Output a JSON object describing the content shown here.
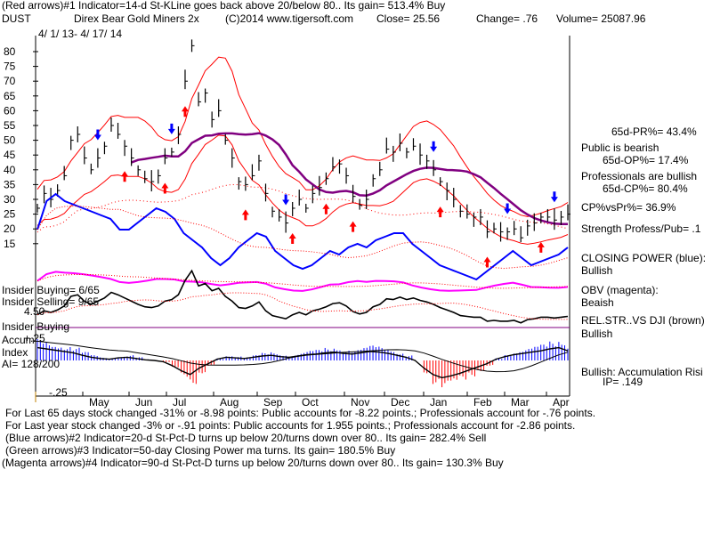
{
  "header": {
    "line1": "(Red arrows)#1 Indicator=14-d St-KLine goes back above 20/below 80..  Its gain= 513.4% Buy",
    "symbol": "DUST",
    "company": "Direx Bear Gold Miners 2x",
    "copyright": "(C)2014 www.tigersoft.com",
    "close": "Close=   25.56",
    "change": "Change= .76",
    "volume": "Volume= 25087.96",
    "dates": "4/ 1/ 13-  4/ 17/ 14"
  },
  "right_panel": {
    "pr": "65d-PR%= 43.4%",
    "public": "Public is bearish",
    "op": "65d-OP%= 17.4%",
    "pros": "Professionals are bullish",
    "cp": "65d-CP%= 80.4%",
    "cpvspr": "CP%vsPr%=  36.9%",
    "strength": "Strength Profess/Pub= .1",
    "cp_title": "CLOSING POWER (blue):",
    "cp_status": "Bullish",
    "obv_title": "OBV (magenta):",
    "obv_status": "Beaish",
    "rel_title": "REL.STR..VS DJI (brown)",
    "rel_status": "Bullish",
    "accum_title": "Bullish: Accumulation Risi",
    "accum_ip": "IP=  .149"
  },
  "left_panel": {
    "insider_buying": "Insider Buying= 6/65",
    "insider_selling": "Insider Selling= 9/65",
    "minus_value": "4.50",
    "insider_buying2": "Insider Buying",
    "accum": "Accum",
    "index": "Index",
    "plus25": "+.25",
    "ai": "AI= 128/200",
    "minus25": "-.25"
  },
  "footer": {
    "line1": "For Last 65 days stock changed -31% or -8.98 points:  Public accounts for -8.22 points.;  Professionals account for -.76 points.",
    "line2": "For Last year stock changed -3% or -.91 points:  Public accounts for  1.955 points.;  Professionals account for -2.86 points.",
    "line3": "(Blue arrows)#2 Indicator=20-d St-Pct-D turns up below 20/turns down over 80..  Its gain= 282.4% Sell",
    "line4": "(Green arrows)#3 Indicator=50-day Closing Power ma turns.  Its gain= 180.5% Buy",
    "line5": "(Magenta arrows)#4 Indicator=90-d St-Pct-D turns up below 20/turns down over 80..  Its gain= 130.3% Buy"
  },
  "colors": {
    "price": "#000000",
    "bands": "#ff0000",
    "ma": "#800080",
    "closing_power": "#0000ff",
    "obv": "#ff00ff",
    "relstr": "#000000",
    "accum_pos": "#0000ff",
    "accum_neg": "#ff0000",
    "buy_arrow": "#ff0000",
    "sell_arrow": "#0000ff"
  },
  "chart_data": {
    "type": "line",
    "title": "Direx Bear Gold Miners 2x",
    "x_ticks": [
      "May",
      "Jun",
      "Jul",
      "Aug",
      "Sep",
      "Oct",
      "Nov",
      "Dec",
      "Jan",
      "Feb",
      "Mar",
      "Apr"
    ],
    "y_ticks": [
      15,
      20,
      25,
      30,
      35,
      40,
      45,
      50,
      55,
      60,
      65,
      70,
      75,
      80
    ],
    "ylim": [
      12,
      84
    ],
    "price_series": {
      "name": "",
      "values": [
        27,
        32,
        30,
        33,
        38,
        50,
        52,
        44,
        40,
        44,
        48,
        55,
        52,
        48,
        44,
        40,
        37,
        36,
        38,
        44,
        46,
        52,
        70,
        82,
        63,
        66,
        57,
        60,
        50,
        44,
        36,
        35,
        38,
        43,
        32,
        26,
        24,
        22,
        27,
        30,
        27,
        32,
        34,
        37,
        41,
        42,
        38,
        31,
        28,
        30,
        37,
        40,
        47,
        46,
        49,
        46,
        48,
        45,
        43,
        40,
        36,
        33,
        30,
        26,
        25,
        24,
        24,
        19,
        20,
        19,
        19,
        20,
        17,
        21,
        22,
        24,
        24,
        23,
        24,
        25
      ]
    },
    "buy_arrows_red": [
      13,
      19,
      22,
      31,
      38,
      43,
      47,
      60,
      67,
      75
    ],
    "sell_arrows_blue": [
      9,
      20,
      37,
      59,
      70,
      77
    ],
    "closing_power": [
      48,
      56,
      58,
      56,
      55,
      54,
      53,
      52,
      51,
      48,
      48,
      50,
      52,
      54,
      53,
      51,
      47,
      45,
      43,
      40,
      38,
      40,
      43,
      45,
      47,
      46,
      42,
      40,
      38,
      37,
      38,
      40,
      42,
      41,
      43,
      44,
      43,
      45,
      46,
      47,
      47,
      44,
      42,
      40,
      38,
      37,
      36,
      35,
      34,
      36,
      38,
      40,
      42,
      40,
      38,
      39,
      40,
      41,
      43
    ],
    "accumulation_index": [
      0.2,
      0.18,
      0.16,
      0.14,
      0.12,
      0.08,
      0.05,
      0.03,
      0.02,
      0.04,
      0.05,
      0.03,
      0.01,
      0.0,
      -0.02,
      -0.08,
      -0.16,
      -0.22,
      -0.12,
      -0.05,
      0.02,
      0.05,
      0.04,
      0.03,
      0.05,
      0.07,
      0.08,
      0.06,
      0.05,
      0.07,
      0.09,
      0.1,
      0.12,
      0.13,
      0.11,
      0.1,
      0.12,
      0.14,
      0.13,
      0.11,
      0.08,
      0.05,
      0.0,
      -0.12,
      -0.22,
      -0.27,
      -0.24,
      -0.2,
      -0.15,
      -0.1,
      -0.05,
      0.02,
      0.06,
      0.09,
      0.11,
      0.13,
      0.15,
      0.18,
      0.2,
      0.15
    ]
  }
}
